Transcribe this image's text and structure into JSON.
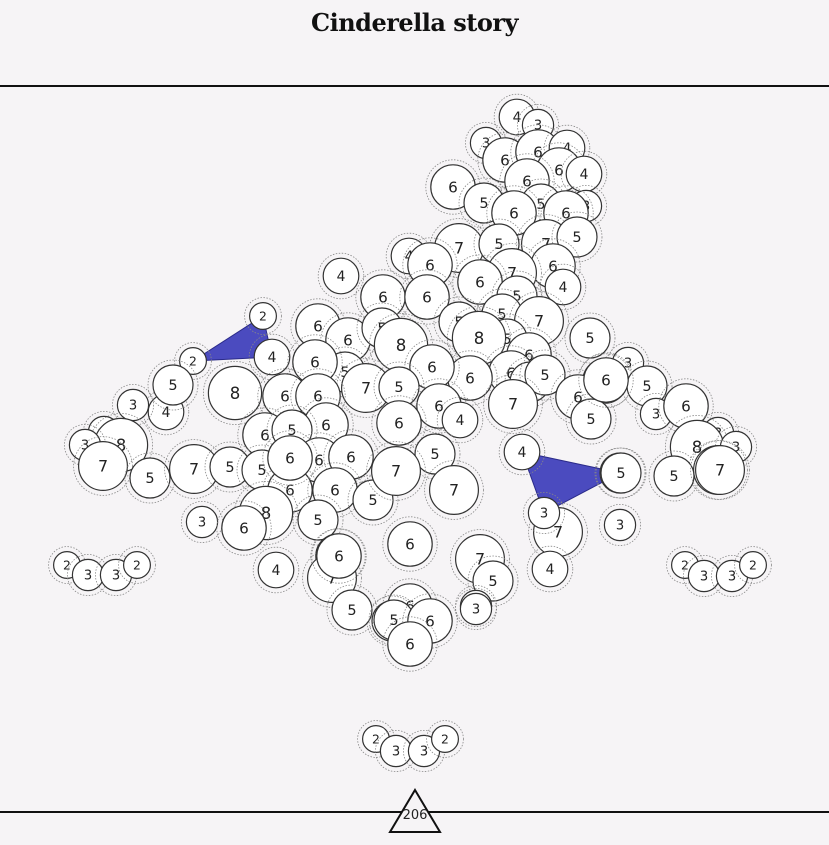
{
  "header": {
    "title": "Cinderella story"
  },
  "footer": {
    "counter": "206"
  },
  "colors": {
    "background": "#f6f4f6",
    "tile_fill": "#ffffff",
    "tile_stroke": "#333333",
    "selection_fill": "#4b4bbf",
    "rule": "#111111"
  },
  "tiles": [
    {
      "v": 4
    },
    {
      "v": 3
    },
    {
      "v": 3
    },
    {
      "v": 6
    },
    {
      "v": 6
    },
    {
      "v": 4
    },
    {
      "v": 6
    },
    {
      "v": 4
    },
    {
      "v": 6
    },
    {
      "v": 6
    },
    {
      "v": 5
    },
    {
      "v": 5
    },
    {
      "v": 6
    },
    {
      "v": 3
    },
    {
      "v": 6
    },
    {
      "v": 7
    },
    {
      "v": 5
    },
    {
      "v": 7
    },
    {
      "v": 5
    },
    {
      "v": 4
    },
    {
      "v": 6
    },
    {
      "v": 6
    },
    {
      "v": 4
    },
    {
      "v": 6
    },
    {
      "v": 7
    },
    {
      "v": 4
    },
    {
      "v": 6
    },
    {
      "v": 6
    },
    {
      "v": 4
    },
    {
      "v": 6
    },
    {
      "v": 5
    },
    {
      "v": 5
    },
    {
      "v": 7
    },
    {
      "v": 5
    },
    {
      "v": 2
    },
    {
      "v": 6
    },
    {
      "v": 5
    },
    {
      "v": 8
    },
    {
      "v": 5
    },
    {
      "v": 8
    },
    {
      "v": 5
    },
    {
      "v": 5
    },
    {
      "v": 7
    },
    {
      "v": 6
    },
    {
      "v": 2
    },
    {
      "v": 4
    },
    {
      "v": 6
    },
    {
      "v": 5
    },
    {
      "v": 6
    },
    {
      "v": 6
    },
    {
      "v": 3
    },
    {
      "v": 6
    },
    {
      "v": 5
    },
    {
      "v": 5
    },
    {
      "v": 5
    },
    {
      "v": 6
    },
    {
      "v": 7
    },
    {
      "v": 6
    },
    {
      "v": 3
    },
    {
      "v": 5
    },
    {
      "v": 8
    },
    {
      "v": 6
    },
    {
      "v": 6
    },
    {
      "v": 7
    },
    {
      "v": 5
    },
    {
      "v": 6
    },
    {
      "v": 4
    },
    {
      "v": 3
    },
    {
      "v": 6
    },
    {
      "v": 6
    },
    {
      "v": 6
    },
    {
      "v": 5
    },
    {
      "v": 5
    },
    {
      "v": 6
    },
    {
      "v": 6
    },
    {
      "v": 6
    },
    {
      "v": 3
    },
    {
      "v": 8
    },
    {
      "v": 3
    },
    {
      "v": 8
    },
    {
      "v": 3
    },
    {
      "v": 3
    },
    {
      "v": 7
    },
    {
      "v": 5
    },
    {
      "v": 7
    },
    {
      "v": 5
    },
    {
      "v": 5
    },
    {
      "v": 6
    },
    {
      "v": 6
    },
    {
      "v": 5
    },
    {
      "v": 7
    },
    {
      "v": 6
    },
    {
      "v": 4
    },
    {
      "v": 5
    },
    {
      "v": 7
    },
    {
      "v": 5
    },
    {
      "v": 5
    },
    {
      "v": 7
    },
    {
      "v": 3
    },
    {
      "v": 8
    },
    {
      "v": 6
    },
    {
      "v": 3
    },
    {
      "v": 7
    },
    {
      "v": 3
    },
    {
      "v": 6
    },
    {
      "v": 5
    },
    {
      "v": 6
    },
    {
      "v": 6
    },
    {
      "v": 5
    },
    {
      "v": 4
    },
    {
      "v": 7
    },
    {
      "v": 5
    },
    {
      "v": 3
    },
    {
      "v": 4
    },
    {
      "v": 7
    },
    {
      "v": 3
    },
    {
      "v": 5
    },
    {
      "v": 6
    },
    {
      "v": 6
    },
    {
      "v": 5
    },
    {
      "v": 6
    },
    {
      "v": 2
    },
    {
      "v": 3
    },
    {
      "v": 3
    },
    {
      "v": 2
    },
    {
      "v": 2
    },
    {
      "v": 3
    },
    {
      "v": 3
    },
    {
      "v": 2
    },
    {
      "v": 2
    },
    {
      "v": 3
    },
    {
      "v": 3
    },
    {
      "v": 2
    },
    {
      "v": 6
    }
  ]
}
